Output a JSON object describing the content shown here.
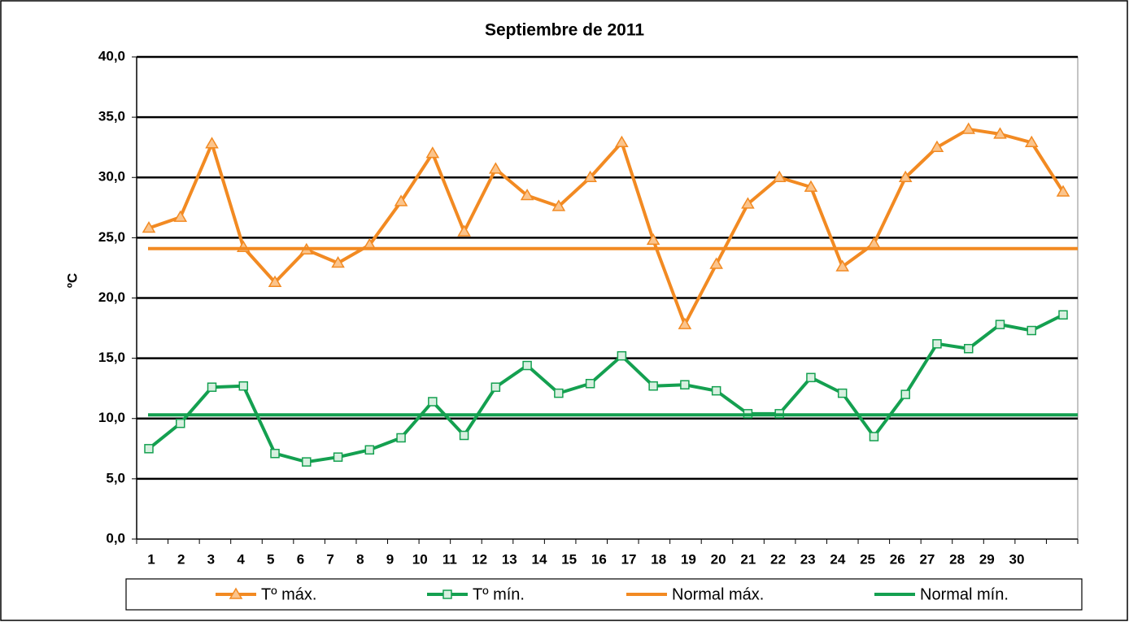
{
  "chart_data": {
    "type": "line",
    "title": "Septiembre de 2011",
    "ylabel": "ºC",
    "categories": [
      "1",
      "2",
      "3",
      "4",
      "5",
      "6",
      "7",
      "8",
      "9",
      "10",
      "11",
      "12",
      "13",
      "14",
      "15",
      "16",
      "17",
      "18",
      "19",
      "20",
      "21",
      "22",
      "23",
      "24",
      "25",
      "26",
      "27",
      "28",
      "29",
      "30"
    ],
    "series": [
      {
        "name": "Tº máx.",
        "color": "#f28a22",
        "marker": "triangle",
        "values": [
          25.8,
          26.7,
          32.8,
          24.2,
          21.3,
          24.0,
          22.9,
          24.4,
          28.0,
          32.0,
          25.5,
          30.7,
          28.5,
          27.6,
          30.0,
          32.9,
          24.8,
          17.8,
          22.8,
          27.8,
          30.0,
          29.2,
          22.6,
          24.5,
          30.0,
          32.5,
          34.0,
          33.6,
          32.9,
          28.8
        ]
      },
      {
        "name": "Tº mín.",
        "color": "#14a050",
        "marker": "square",
        "values": [
          7.5,
          9.6,
          12.6,
          12.7,
          7.1,
          6.4,
          6.8,
          7.4,
          8.4,
          11.4,
          8.6,
          12.6,
          14.4,
          12.1,
          12.9,
          15.2,
          12.7,
          12.8,
          12.3,
          10.4,
          10.4,
          13.4,
          12.1,
          8.5,
          12.0,
          16.2,
          15.8,
          17.8,
          17.3,
          18.6
        ]
      },
      {
        "name": "Normal máx.",
        "color": "#f28a22",
        "value": 24.1
      },
      {
        "name": "Normal mín.",
        "color": "#14a050",
        "value": 10.3
      }
    ],
    "ylim": [
      0,
      40
    ],
    "yticks": [
      {
        "value": 0,
        "label": "0,0"
      },
      {
        "value": 5,
        "label": "5,0"
      },
      {
        "value": 10,
        "label": "10,0"
      },
      {
        "value": 15,
        "label": "15,0"
      },
      {
        "value": 20,
        "label": "20,0"
      },
      {
        "value": 25,
        "label": "25,0"
      },
      {
        "value": 30,
        "label": "30,0"
      },
      {
        "value": 35,
        "label": "35,0"
      },
      {
        "value": 40,
        "label": "40,0"
      }
    ],
    "grid": true
  }
}
